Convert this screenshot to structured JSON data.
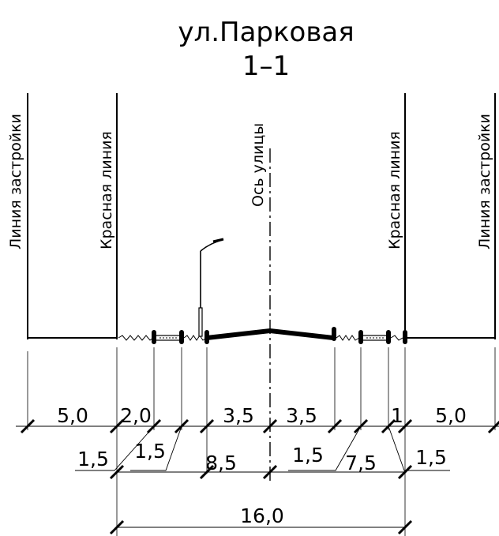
{
  "title": "ул.Парковая",
  "section": "1–1",
  "labels": {
    "building_line": "Линия застройки",
    "red_line": "Красная линия",
    "street_axis": "Ось улицы"
  },
  "dimensions": {
    "row1": [
      "5,0",
      "2,0",
      "3,5",
      "3,5",
      "1",
      "5,0"
    ],
    "row2_left": [
      "1,5",
      "1,5"
    ],
    "row2_right": [
      "1,5",
      "1,5"
    ],
    "carriageway_left": "8,5",
    "carriageway_right": "7,5",
    "total": "16,0"
  }
}
